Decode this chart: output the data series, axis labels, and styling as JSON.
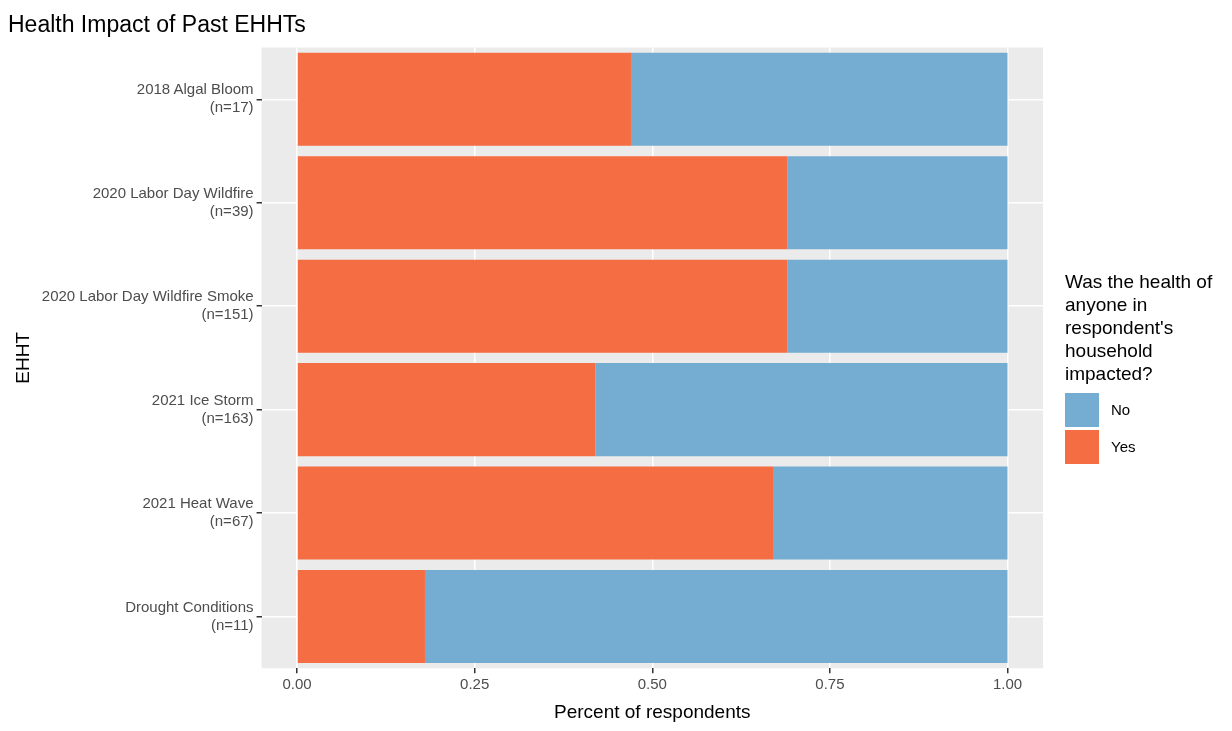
{
  "chart_data": {
    "type": "bar",
    "orientation": "horizontal",
    "stacked": true,
    "title": "Health Impact of Past EHHTs",
    "xlabel": "Percent of respondents",
    "ylabel": "EHHT",
    "legend_title": "Was the health of anyone in respondent's household impacted?",
    "categories": [
      "2018 Algal Bloom\n(n=17)",
      "2020 Labor Day Wildfire\n(n=39)",
      "2020 Labor Day Wildfire Smoke\n(n=151)",
      "2021 Ice Storm\n(n=163)",
      "2021 Heat Wave\n(n=67)",
      "Drought Conditions\n(n=11)"
    ],
    "series": [
      {
        "name": "Yes",
        "color": "#f46d43",
        "values": [
          0.47,
          0.69,
          0.69,
          0.42,
          0.67,
          0.18
        ]
      },
      {
        "name": "No",
        "color": "#74add1",
        "values": [
          0.53,
          0.31,
          0.31,
          0.58,
          0.33,
          0.82
        ]
      }
    ],
    "xlim": [
      -0.05,
      1.05
    ],
    "xticks": [
      {
        "value": 0,
        "label": "0.00"
      },
      {
        "value": 0.25,
        "label": "0.25"
      },
      {
        "value": 0.5,
        "label": "0.50"
      },
      {
        "value": 0.75,
        "label": "0.75"
      },
      {
        "value": 1,
        "label": "1.00"
      }
    ],
    "grid": true,
    "legend": "right"
  }
}
